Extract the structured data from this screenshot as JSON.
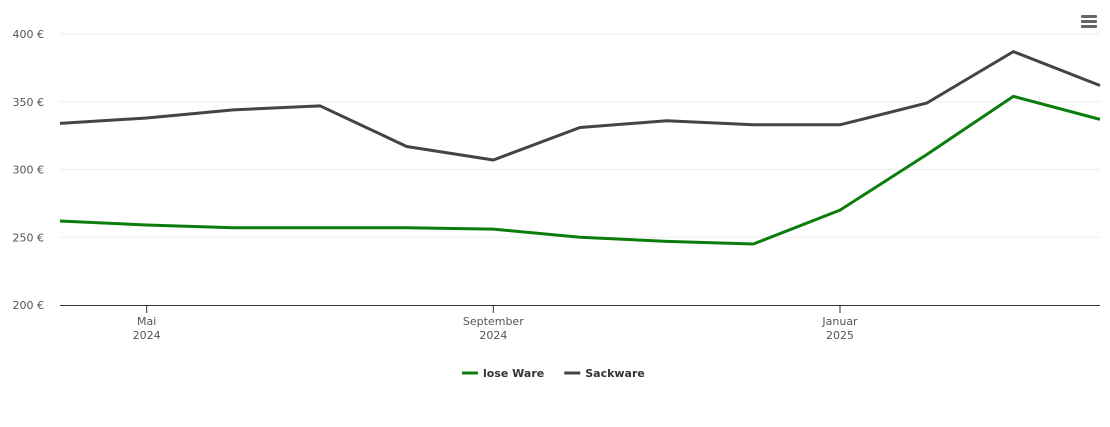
{
  "chart_data": {
    "type": "line",
    "x": [
      "2024-04",
      "2024-05",
      "2024-06",
      "2024-07",
      "2024-08",
      "2024-09",
      "2024-10",
      "2024-11",
      "2024-12",
      "2025-01",
      "2025-02",
      "2025-03",
      "2025-04"
    ],
    "series": [
      {
        "name": "lose Ware",
        "color": "#0b7d0b",
        "values": [
          262,
          259,
          257,
          257,
          257,
          256,
          250,
          247,
          245,
          270,
          311,
          354,
          337
        ]
      },
      {
        "name": "Sackware",
        "color": "#434348",
        "values": [
          334,
          338,
          344,
          347,
          317,
          307,
          331,
          336,
          333,
          333,
          349,
          387,
          362
        ]
      }
    ],
    "xlim": [
      "2024-04",
      "2025-04"
    ],
    "xticks": [
      {
        "value": "2024-05",
        "label": "Mai 2024"
      },
      {
        "value": "2024-09",
        "label": "September 2024"
      },
      {
        "value": "2025-01",
        "label": "Januar 2025"
      }
    ],
    "ylim": [
      200,
      400
    ],
    "yticks": [
      {
        "value": 200,
        "label": "200 €"
      },
      {
        "value": 250,
        "label": "250 €"
      },
      {
        "value": 300,
        "label": "300 €"
      },
      {
        "value": 350,
        "label": "350 €"
      },
      {
        "value": 400,
        "label": "400 €"
      }
    ],
    "grid": true,
    "legend": "bottom"
  }
}
